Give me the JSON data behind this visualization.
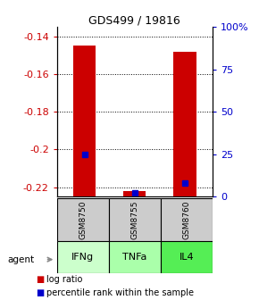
{
  "title": "GDS499 / 19816",
  "samples": [
    "GSM8750",
    "GSM8755",
    "GSM8760"
  ],
  "agents": [
    "IFNg",
    "TNFa",
    "IL4"
  ],
  "log_ratio_values": [
    -0.145,
    -0.222,
    -0.148
  ],
  "percentile_values": [
    25,
    2,
    8
  ],
  "ylim_left": [
    -0.225,
    -0.135
  ],
  "yticks_left": [
    -0.22,
    -0.2,
    -0.18,
    -0.16,
    -0.14
  ],
  "yticks_right": [
    0,
    25,
    50,
    75,
    100
  ],
  "yticks_right_labels": [
    "0",
    "25",
    "50",
    "75",
    "100%"
  ],
  "bar_color": "#cc0000",
  "percentile_color": "#0000cc",
  "agent_colors": [
    "#ccffcc",
    "#aaffaa",
    "#55ee55"
  ],
  "sample_box_color": "#cccccc",
  "bar_width": 0.45,
  "left_color": "#cc0000",
  "right_color": "#0000cc"
}
